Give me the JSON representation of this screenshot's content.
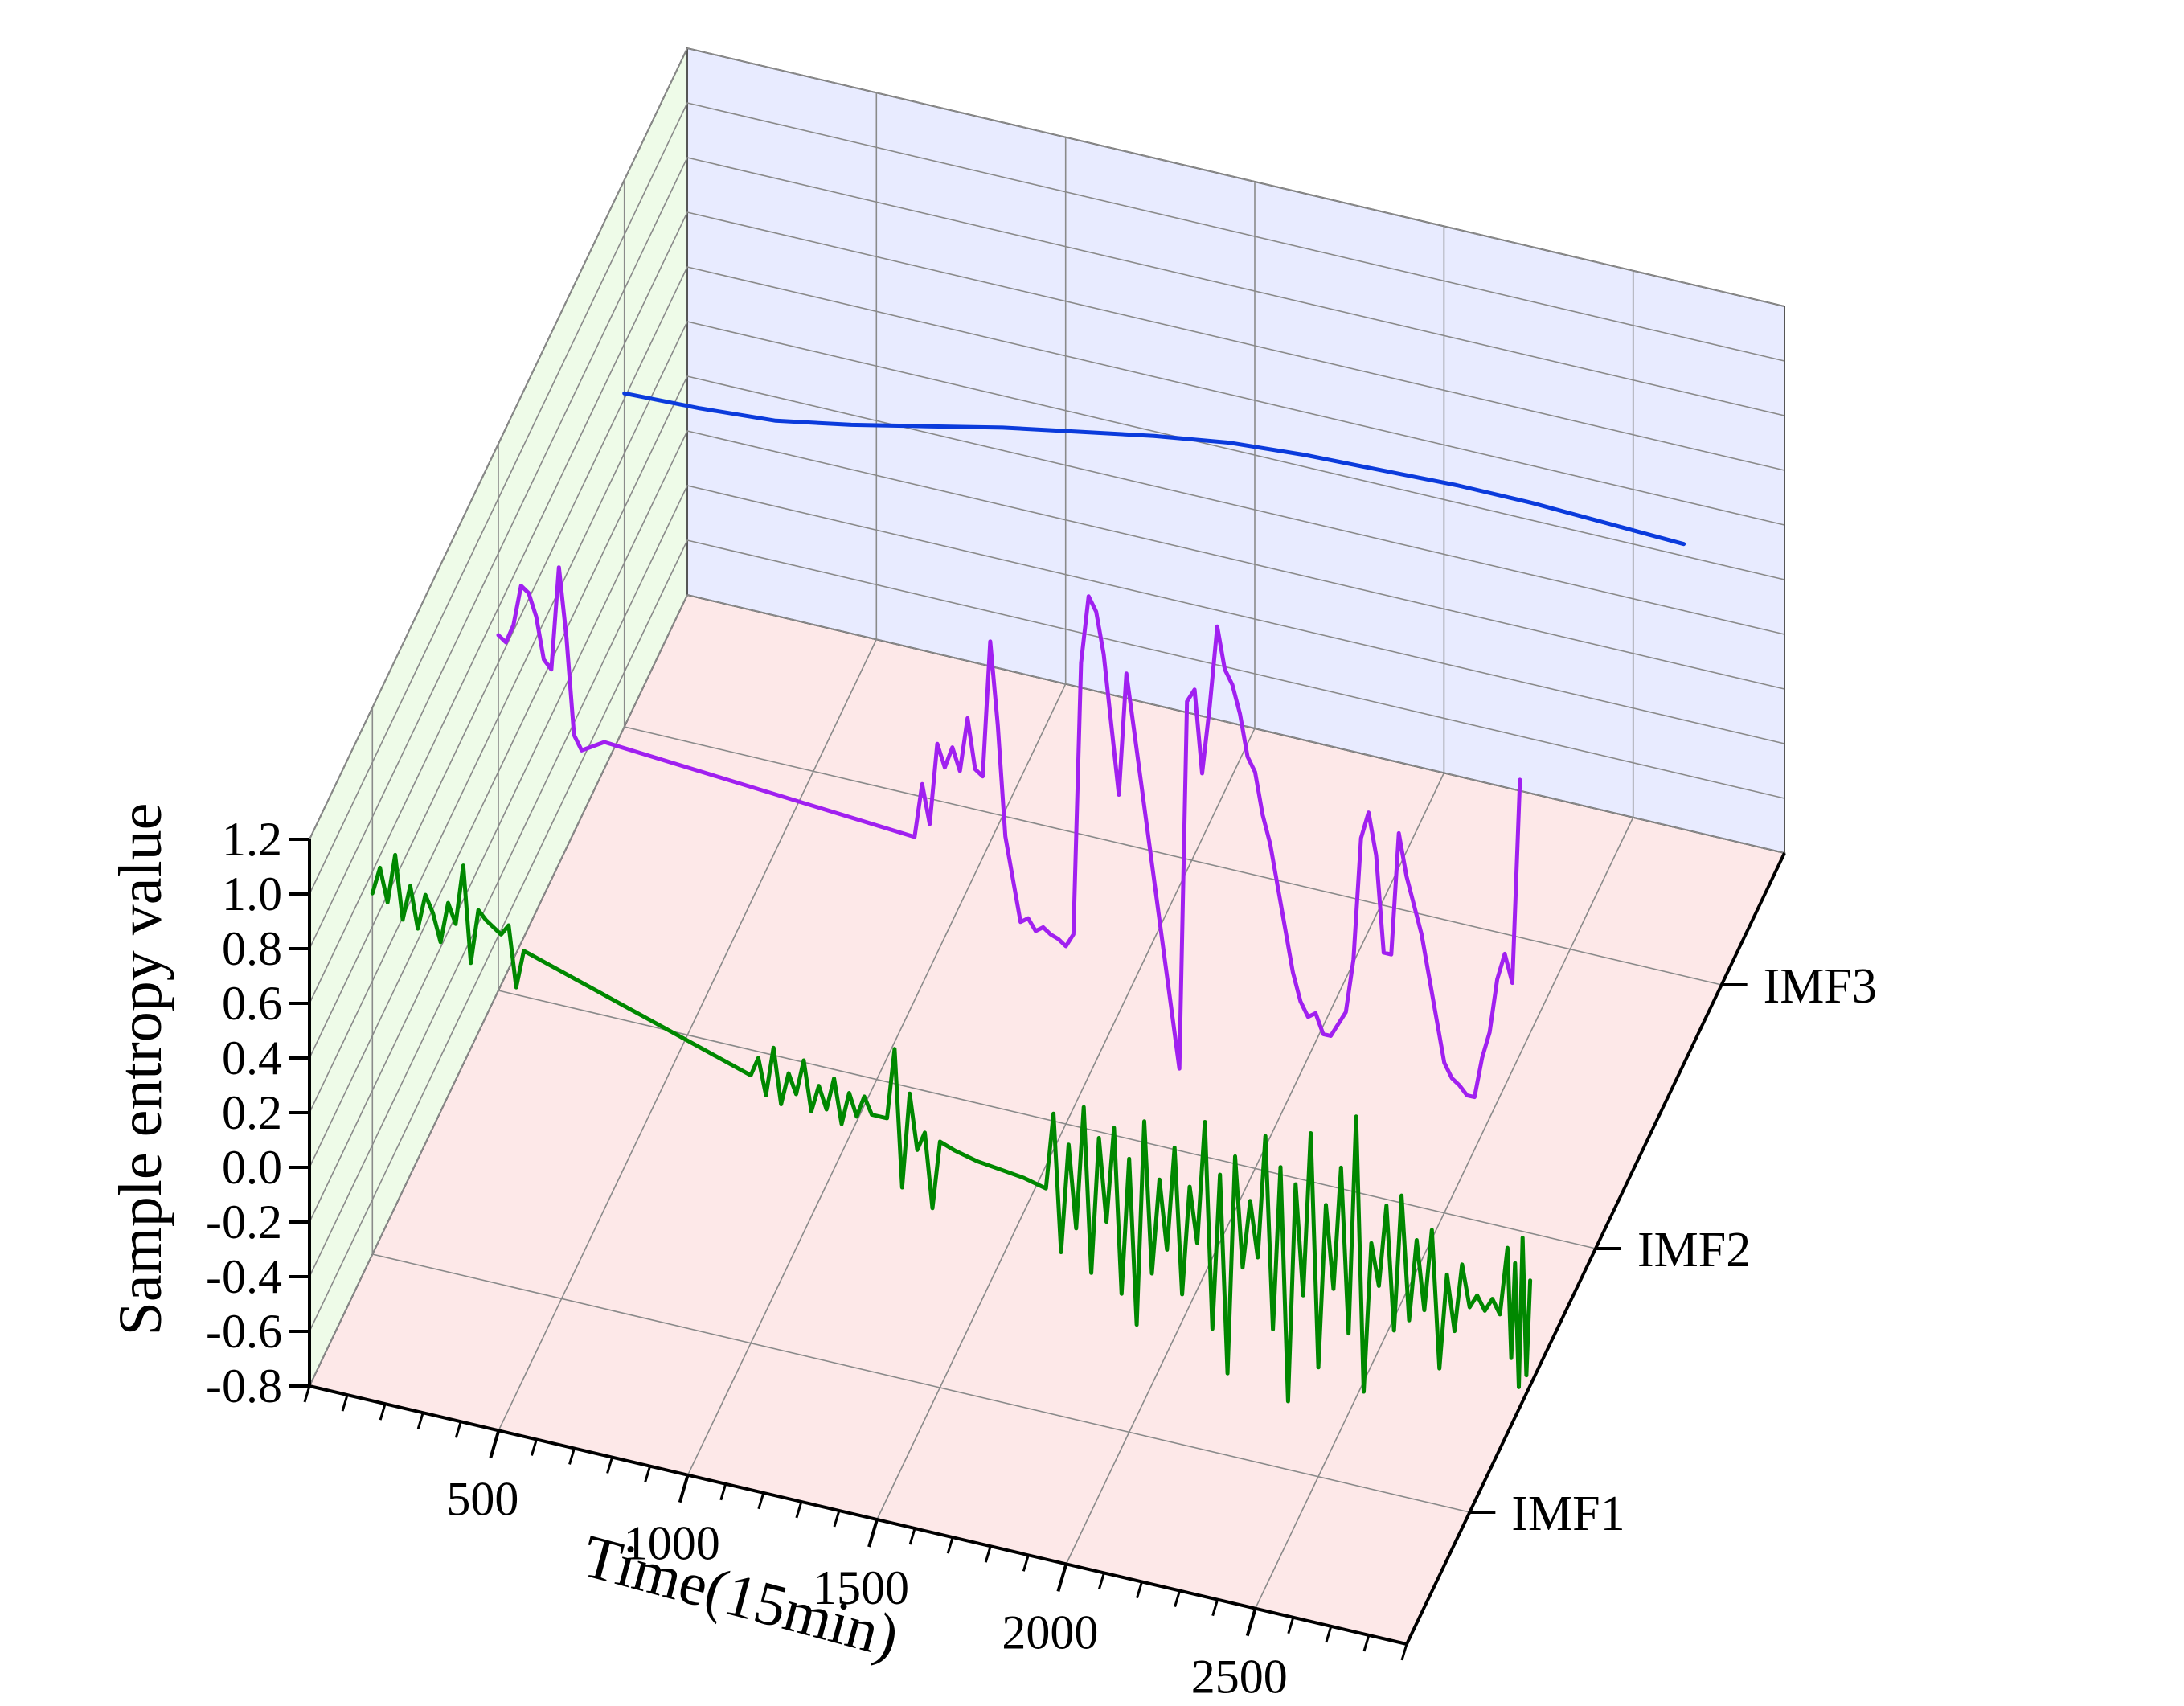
{
  "chart_data": {
    "type": "line",
    "projection": "3d",
    "xlabel": "Time(15min)",
    "ylabel": "Sample entropy  value",
    "x_ticks": [
      500,
      1000,
      1500,
      2000,
      2500
    ],
    "x_tick_labels": [
      "500",
      "1000",
      "1500",
      "2000",
      "2500"
    ],
    "xlim": [
      0,
      2900
    ],
    "y_ticks": [
      1.2,
      1.0,
      0.8,
      0.6,
      0.4,
      0.2,
      0.0,
      -0.2,
      -0.4,
      -0.6,
      -0.8
    ],
    "y_tick_labels": [
      "1.2",
      "1.0",
      "0.8",
      "0.6",
      "0.4",
      "0.2",
      "0.0",
      "-0.2",
      "-0.4",
      "-0.6",
      "-0.8"
    ],
    "ylim": [
      -0.8,
      1.2
    ],
    "categories": [
      "IMF1",
      "IMF2",
      "IMF3"
    ],
    "grid": true,
    "colors": {
      "IMF1": "#008800",
      "IMF2": "#a020f0",
      "IMF3": "#0b3bdc",
      "back_wall": "#e8ebff",
      "side_wall": "#eefbe8",
      "floor": "#fde8e8"
    },
    "series": [
      {
        "category": "IMF1",
        "points": [
          [
            0,
            0.52
          ],
          [
            20,
            0.62
          ],
          [
            40,
            0.5
          ],
          [
            60,
            0.68
          ],
          [
            80,
            0.45
          ],
          [
            100,
            0.58
          ],
          [
            120,
            0.43
          ],
          [
            140,
            0.56
          ],
          [
            160,
            0.5
          ],
          [
            180,
            0.4
          ],
          [
            200,
            0.55
          ],
          [
            220,
            0.48
          ],
          [
            240,
            0.7
          ],
          [
            260,
            0.35
          ],
          [
            280,
            0.55
          ],
          [
            300,
            0.52
          ],
          [
            320,
            0.5
          ],
          [
            340,
            0.48
          ],
          [
            360,
            0.52
          ],
          [
            380,
            0.3
          ],
          [
            400,
            0.44
          ],
          [
            1000,
            0.18
          ],
          [
            1020,
            0.25
          ],
          [
            1040,
            0.12
          ],
          [
            1060,
            0.3
          ],
          [
            1080,
            0.1
          ],
          [
            1100,
            0.22
          ],
          [
            1120,
            0.15
          ],
          [
            1140,
            0.28
          ],
          [
            1160,
            0.1
          ],
          [
            1180,
            0.2
          ],
          [
            1200,
            0.12
          ],
          [
            1220,
            0.24
          ],
          [
            1240,
            0.08
          ],
          [
            1260,
            0.2
          ],
          [
            1280,
            0.12
          ],
          [
            1300,
            0.2
          ],
          [
            1320,
            0.14
          ],
          [
            1360,
            0.14
          ],
          [
            1380,
            0.4
          ],
          [
            1400,
            -0.1
          ],
          [
            1420,
            0.25
          ],
          [
            1440,
            0.05
          ],
          [
            1460,
            0.12
          ],
          [
            1480,
            -0.15
          ],
          [
            1500,
            0.1
          ],
          [
            1540,
            0.08
          ],
          [
            1600,
            0.06
          ],
          [
            1660,
            0.05
          ],
          [
            1720,
            0.04
          ],
          [
            1780,
            0.02
          ],
          [
            1800,
            0.3
          ],
          [
            1820,
            -0.2
          ],
          [
            1840,
            0.2
          ],
          [
            1860,
            -0.1
          ],
          [
            1880,
            0.35
          ],
          [
            1900,
            -0.25
          ],
          [
            1920,
            0.25
          ],
          [
            1940,
            -0.05
          ],
          [
            1960,
            0.3
          ],
          [
            1980,
            -0.3
          ],
          [
            2000,
            0.2
          ],
          [
            2020,
            -0.4
          ],
          [
            2040,
            0.35
          ],
          [
            2060,
            -0.2
          ],
          [
            2080,
            0.15
          ],
          [
            2100,
            -0.1
          ],
          [
            2120,
            0.28
          ],
          [
            2140,
            -0.25
          ],
          [
            2160,
            0.15
          ],
          [
            2180,
            -0.05
          ],
          [
            2200,
            0.4
          ],
          [
            2220,
            -0.35
          ],
          [
            2240,
            0.22
          ],
          [
            2260,
            -0.5
          ],
          [
            2280,
            0.3
          ],
          [
            2300,
            -0.1
          ],
          [
            2320,
            0.15
          ],
          [
            2340,
            -0.05
          ],
          [
            2360,
            0.4
          ],
          [
            2380,
            -0.3
          ],
          [
            2400,
            0.3
          ],
          [
            2420,
            -0.55
          ],
          [
            2440,
            0.25
          ],
          [
            2460,
            -0.15
          ],
          [
            2480,
            0.45
          ],
          [
            2500,
            -0.4
          ],
          [
            2520,
            0.2
          ],
          [
            2540,
            -0.1
          ],
          [
            2560,
            0.35
          ],
          [
            2580,
            -0.25
          ],
          [
            2600,
            0.55
          ],
          [
            2620,
            -0.45
          ],
          [
            2640,
            0.1
          ],
          [
            2660,
            -0.05
          ],
          [
            2680,
            0.25
          ],
          [
            2700,
            -0.2
          ],
          [
            2720,
            0.3
          ],
          [
            2740,
            -0.15
          ],
          [
            2760,
            0.15
          ],
          [
            2780,
            -0.1
          ],
          [
            2800,
            0.2
          ],
          [
            2820,
            -0.3
          ],
          [
            2840,
            0.05
          ],
          [
            2860,
            -0.15
          ],
          [
            2880,
            0.1
          ],
          [
            2900,
            -0.05
          ],
          [
            2920,
            0.0
          ],
          [
            2940,
            -0.05
          ],
          [
            2960,
            0.0
          ],
          [
            2980,
            -0.05
          ],
          [
            3000,
            0.2
          ],
          [
            3010,
            -0.2
          ],
          [
            3020,
            0.15
          ],
          [
            3030,
            -0.3
          ],
          [
            3040,
            0.25
          ],
          [
            3050,
            -0.25
          ],
          [
            3060,
            0.1
          ]
        ]
      },
      {
        "category": "IMF2",
        "points": [
          [
            0,
            0.5
          ],
          [
            20,
            0.48
          ],
          [
            40,
            0.55
          ],
          [
            60,
            0.7
          ],
          [
            80,
            0.68
          ],
          [
            100,
            0.6
          ],
          [
            120,
            0.45
          ],
          [
            140,
            0.42
          ],
          [
            160,
            0.8
          ],
          [
            180,
            0.55
          ],
          [
            200,
            0.2
          ],
          [
            220,
            0.15
          ],
          [
            280,
            0.2
          ],
          [
            1100,
            0.12
          ],
          [
            1120,
            0.32
          ],
          [
            1140,
            0.18
          ],
          [
            1160,
            0.48
          ],
          [
            1180,
            0.4
          ],
          [
            1200,
            0.48
          ],
          [
            1220,
            0.4
          ],
          [
            1240,
            0.6
          ],
          [
            1260,
            0.42
          ],
          [
            1280,
            0.4
          ],
          [
            1300,
            0.9
          ],
          [
            1320,
            0.6
          ],
          [
            1340,
            0.2
          ],
          [
            1360,
            0.05
          ],
          [
            1380,
            -0.1
          ],
          [
            1400,
            -0.08
          ],
          [
            1420,
            -0.12
          ],
          [
            1440,
            -0.1
          ],
          [
            1460,
            -0.12
          ],
          [
            1480,
            -0.13
          ],
          [
            1500,
            -0.15
          ],
          [
            1520,
            -0.1
          ],
          [
            1540,
            0.9
          ],
          [
            1560,
            1.15
          ],
          [
            1580,
            1.1
          ],
          [
            1600,
            0.95
          ],
          [
            1620,
            0.7
          ],
          [
            1640,
            0.45
          ],
          [
            1660,
            0.9
          ],
          [
            1680,
            0.7
          ],
          [
            1700,
            0.5
          ],
          [
            1720,
            0.3
          ],
          [
            1740,
            0.1
          ],
          [
            1760,
            -0.1
          ],
          [
            1780,
            -0.3
          ],
          [
            1800,
            -0.5
          ],
          [
            1820,
            0.85
          ],
          [
            1840,
            0.9
          ],
          [
            1860,
            0.6
          ],
          [
            1880,
            0.85
          ],
          [
            1900,
            1.15
          ],
          [
            1920,
            1.0
          ],
          [
            1940,
            0.95
          ],
          [
            1960,
            0.85
          ],
          [
            1980,
            0.7
          ],
          [
            2000,
            0.65
          ],
          [
            2020,
            0.5
          ],
          [
            2040,
            0.4
          ],
          [
            2060,
            0.25
          ],
          [
            2080,
            0.1
          ],
          [
            2100,
            -0.05
          ],
          [
            2120,
            -0.15
          ],
          [
            2140,
            -0.2
          ],
          [
            2160,
            -0.18
          ],
          [
            2180,
            -0.25
          ],
          [
            2200,
            -0.25
          ],
          [
            2220,
            -0.2
          ],
          [
            2240,
            -0.15
          ],
          [
            2260,
            0.05
          ],
          [
            2280,
            0.5
          ],
          [
            2300,
            0.6
          ],
          [
            2320,
            0.45
          ],
          [
            2340,
            0.1
          ],
          [
            2360,
            0.1
          ],
          [
            2380,
            0.55
          ],
          [
            2400,
            0.4
          ],
          [
            2420,
            0.3
          ],
          [
            2440,
            0.2
          ],
          [
            2460,
            0.05
          ],
          [
            2480,
            -0.1
          ],
          [
            2500,
            -0.25
          ],
          [
            2520,
            -0.3
          ],
          [
            2540,
            -0.32
          ],
          [
            2560,
            -0.35
          ],
          [
            2580,
            -0.35
          ],
          [
            2600,
            -0.2
          ],
          [
            2620,
            -0.1
          ],
          [
            2640,
            0.1
          ],
          [
            2660,
            0.2
          ],
          [
            2680,
            0.1
          ],
          [
            2700,
            0.85
          ]
        ]
      },
      {
        "category": "IMF3",
        "points": [
          [
            0,
            0.42
          ],
          [
            200,
            0.43
          ],
          [
            400,
            0.45
          ],
          [
            600,
            0.5
          ],
          [
            800,
            0.56
          ],
          [
            1000,
            0.62
          ],
          [
            1200,
            0.67
          ],
          [
            1400,
            0.72
          ],
          [
            1600,
            0.76
          ],
          [
            1800,
            0.78
          ],
          [
            2000,
            0.79
          ],
          [
            2200,
            0.8
          ],
          [
            2400,
            0.8
          ],
          [
            2600,
            0.79
          ],
          [
            2800,
            0.78
          ]
        ]
      }
    ]
  }
}
